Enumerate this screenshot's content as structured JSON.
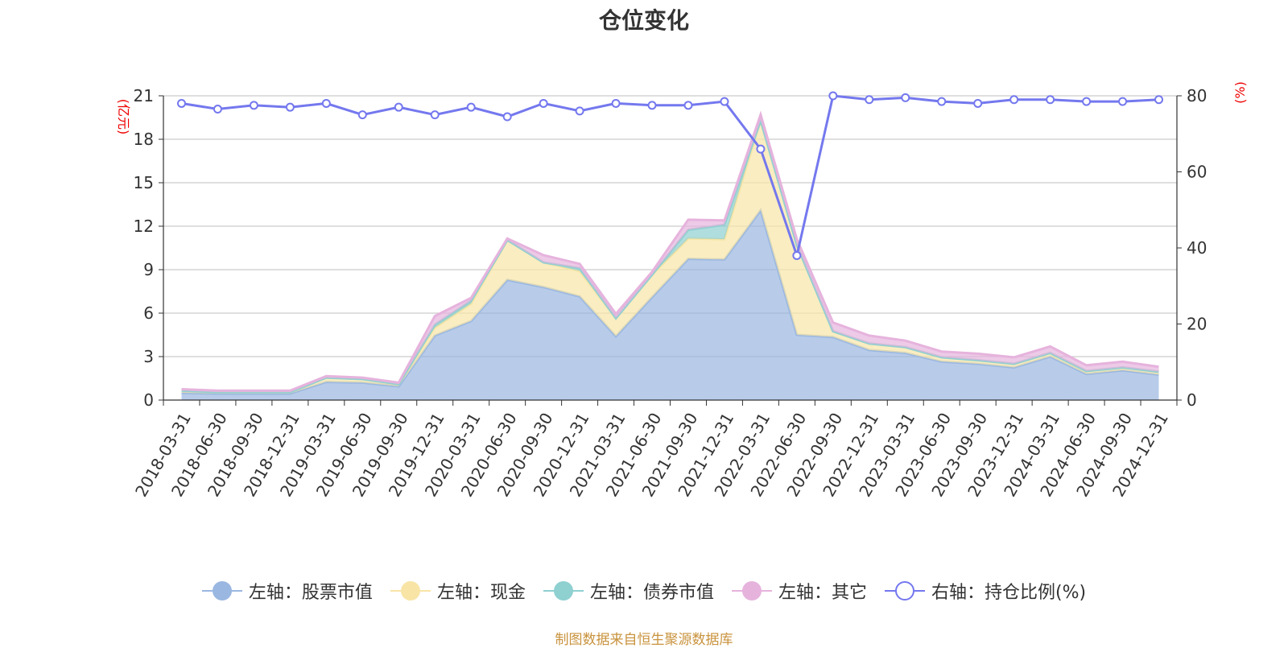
{
  "title": "仓位变化",
  "footer": "制图数据来自恒生聚源数据库",
  "colors": {
    "stock": "#9ab7e1",
    "cash": "#f8e5a6",
    "bond": "#8fd0d1",
    "other": "#e6b3dd",
    "ratio": "#7478ee",
    "unit": "#ee0000"
  },
  "legend": [
    {
      "label": "左轴：股票市值",
      "color": "#9ab7e1",
      "style": "filled"
    },
    {
      "label": "左轴：现金",
      "color": "#f8e5a6",
      "style": "filled"
    },
    {
      "label": "左轴：债券市值",
      "color": "#8fd0d1",
      "style": "filled"
    },
    {
      "label": "左轴：其它",
      "color": "#e6b3dd",
      "style": "filled"
    },
    {
      "label": "右轴：持仓比例(%)",
      "color": "#7478ee",
      "style": "hollow"
    }
  ],
  "chart_data": {
    "type": "area",
    "title": "仓位变化",
    "y_left_label": "(亿元)",
    "y_right_label": "(%)",
    "y_left_range": [
      0,
      21
    ],
    "y_left_ticks": [
      0,
      3,
      6,
      9,
      12,
      15,
      18,
      21
    ],
    "y_right_range": [
      0,
      80
    ],
    "y_right_ticks": [
      0,
      20,
      40,
      60,
      80
    ],
    "grid": true,
    "legend_position": "bottom",
    "x": [
      "2018-03-31",
      "2018-06-30",
      "2018-09-30",
      "2018-12-31",
      "2019-03-31",
      "2019-06-30",
      "2019-09-30",
      "2019-12-31",
      "2020-03-31",
      "2020-06-30",
      "2020-09-30",
      "2020-12-31",
      "2021-03-31",
      "2021-06-30",
      "2021-09-30",
      "2021-12-31",
      "2022-03-31",
      "2022-06-30",
      "2022-09-30",
      "2022-12-31",
      "2023-03-31",
      "2023-06-30",
      "2023-09-30",
      "2023-12-31",
      "2024-03-31",
      "2024-06-30",
      "2024-09-30",
      "2024-12-31"
    ],
    "series": [
      {
        "name": "左轴：股票市值",
        "axis": "left",
        "stacked": true,
        "values": [
          0.5,
          0.45,
          0.45,
          0.45,
          1.25,
          1.2,
          0.95,
          4.45,
          5.45,
          8.3,
          7.8,
          7.15,
          4.4,
          7.1,
          9.75,
          9.7,
          13.1,
          4.5,
          4.35,
          3.45,
          3.25,
          2.65,
          2.5,
          2.25,
          3.0,
          1.8,
          2.05,
          1.75
        ]
      },
      {
        "name": "左轴：现金",
        "axis": "left",
        "stacked": true,
        "values": [
          0.15,
          0.1,
          0.1,
          0.1,
          0.3,
          0.25,
          0.15,
          0.55,
          1.2,
          2.75,
          1.7,
          1.75,
          1.25,
          1.55,
          1.4,
          1.4,
          6.2,
          6.2,
          0.4,
          0.45,
          0.4,
          0.3,
          0.25,
          0.25,
          0.25,
          0.2,
          0.2,
          0.2
        ]
      },
      {
        "name": "左轴：债券市值",
        "axis": "left",
        "stacked": true,
        "values": [
          0.0,
          0.0,
          0.0,
          0.0,
          0.0,
          0.0,
          0.0,
          0.2,
          0.2,
          0.0,
          0.0,
          0.2,
          0.0,
          0.0,
          0.6,
          1.0,
          0.0,
          0.0,
          0.0,
          0.0,
          0.0,
          0.0,
          0.0,
          0.0,
          0.0,
          0.0,
          0.0,
          0.0
        ]
      },
      {
        "name": "左轴：其它",
        "axis": "left",
        "stacked": true,
        "values": [
          0.1,
          0.1,
          0.1,
          0.1,
          0.1,
          0.1,
          0.1,
          0.6,
          0.2,
          0.1,
          0.5,
          0.3,
          0.3,
          0.2,
          0.7,
          0.3,
          0.4,
          0.4,
          0.6,
          0.55,
          0.45,
          0.4,
          0.45,
          0.45,
          0.45,
          0.4,
          0.4,
          0.35
        ]
      },
      {
        "name": "右轴：持仓比例(%)",
        "axis": "right",
        "type": "line",
        "values": [
          78.0,
          76.5,
          77.5,
          77.0,
          78.0,
          75.0,
          77.0,
          75.0,
          77.0,
          74.5,
          78.0,
          76.0,
          78.0,
          77.5,
          77.5,
          78.5,
          66.0,
          38.0,
          80.0,
          79.0,
          79.5,
          78.5,
          78.0,
          79.0,
          79.0,
          78.5,
          78.5,
          79.0
        ]
      }
    ]
  }
}
